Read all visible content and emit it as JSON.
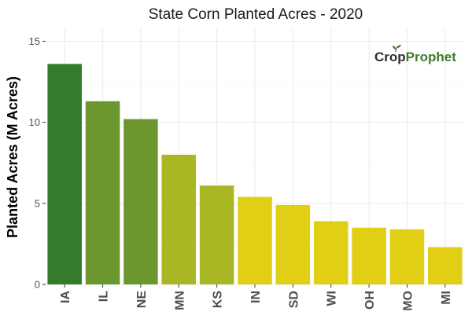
{
  "chart_data": {
    "type": "bar",
    "title": "State Corn Planted Acres - 2020",
    "ylabel": "Planted Acres (M Acres)",
    "xlabel": "",
    "categories": [
      "IA",
      "IL",
      "NE",
      "MN",
      "KS",
      "IN",
      "SD",
      "WI",
      "OH",
      "MO",
      "MI"
    ],
    "values": [
      13.6,
      11.3,
      10.2,
      8.0,
      6.1,
      5.4,
      4.9,
      3.9,
      3.5,
      3.4,
      2.3
    ],
    "bar_colors": [
      "#357b2c",
      "#6b972e",
      "#6b972e",
      "#aab725",
      "#aab725",
      "#e0cf15",
      "#e0cf15",
      "#e0cf15",
      "#e0cf15",
      "#e0cf15",
      "#e0cf15"
    ],
    "ylim": [
      0,
      15.8
    ],
    "yticks": [
      0,
      5,
      10,
      15
    ],
    "grid": true,
    "legend": "none"
  },
  "logo": {
    "crop_text": "Crop",
    "prophet_text": "Prophet",
    "crop_color": "#2e2e2e",
    "prophet_color": "#3c7c2c"
  }
}
